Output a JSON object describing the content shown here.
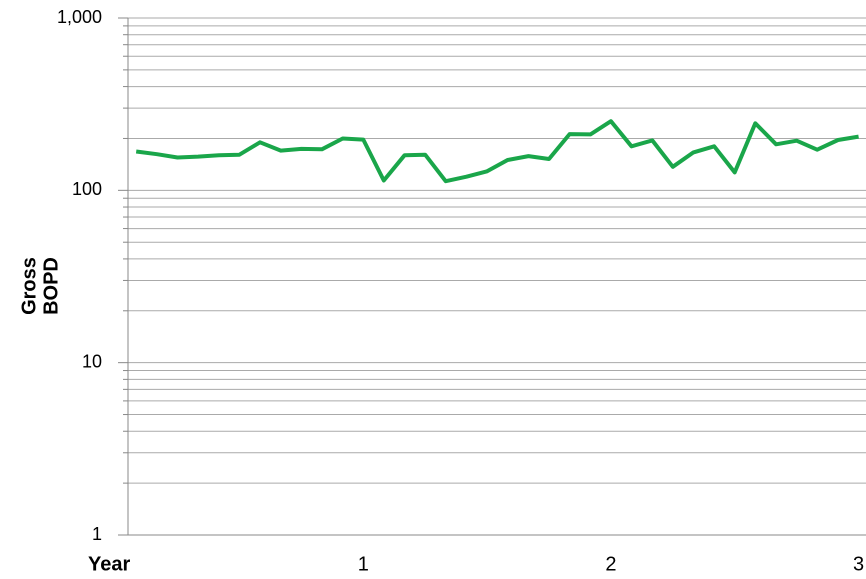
{
  "chart_data": {
    "type": "line",
    "y_label_lines": [
      "Gross",
      "BOPD"
    ],
    "x_label": "Year",
    "log_y": true,
    "grid": true,
    "minor_grid": true,
    "xlim": [
      0.05,
      3.03
    ],
    "xticks": [
      1,
      2,
      3
    ],
    "ylim": [
      1,
      1000
    ],
    "yticks": [
      1,
      10,
      100,
      {
        "value": 1000,
        "label": "1,000"
      }
    ],
    "x": [
      0.083,
      0.167,
      0.25,
      0.333,
      0.417,
      0.5,
      0.583,
      0.667,
      0.75,
      0.833,
      0.917,
      1,
      1.083,
      1.167,
      1.25,
      1.333,
      1.417,
      1.5,
      1.583,
      1.667,
      1.75,
      1.833,
      1.917,
      2,
      2.083,
      2.167,
      2.25,
      2.333,
      2.417,
      2.5,
      2.583,
      2.667,
      2.75,
      2.833,
      2.917,
      3
    ],
    "series": [
      {
        "color": "#1aa64a",
        "values": [
          168,
          162,
          155,
          157,
          160,
          161,
          190,
          170,
          174,
          173,
          200,
          197,
          114,
          160,
          161,
          113,
          120,
          129,
          150,
          158,
          152,
          212,
          211,
          252,
          180,
          195,
          137,
          166,
          180,
          127,
          245,
          185,
          194,
          172,
          196,
          205
        ]
      }
    ]
  }
}
